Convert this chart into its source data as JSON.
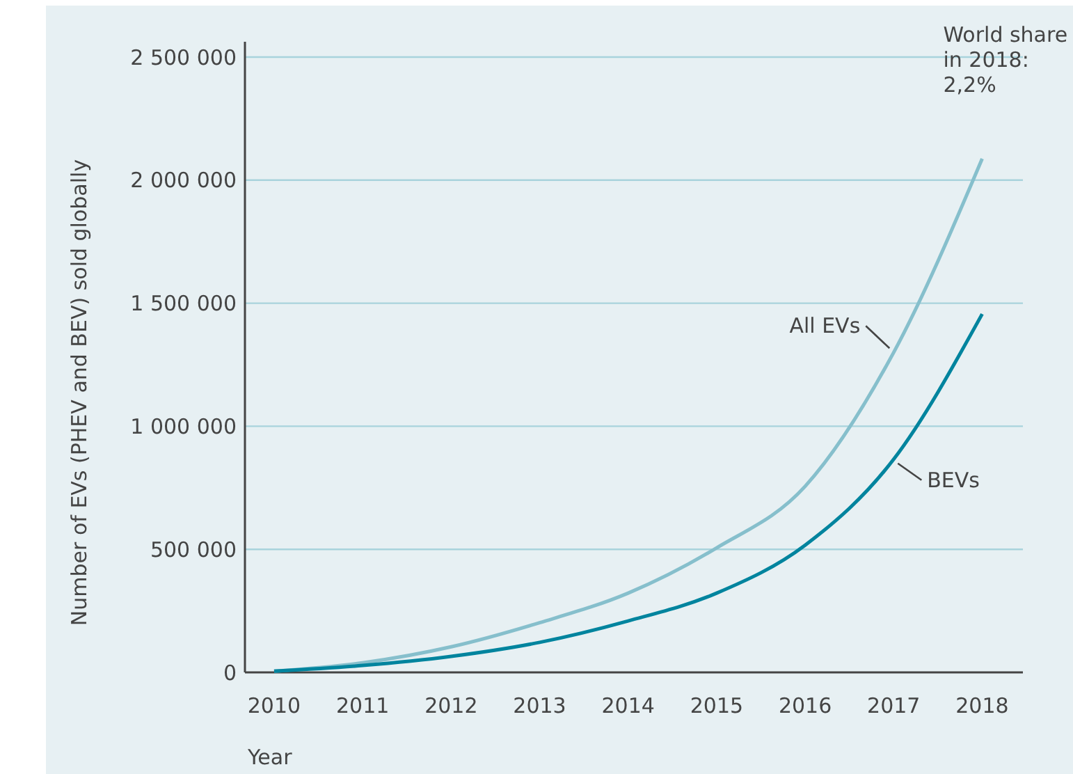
{
  "chart_data": {
    "type": "line",
    "xlabel": "Year",
    "ylabel": "Number of EVs (PHEV and BEV) sold globally",
    "x": [
      2010,
      2011,
      2012,
      2013,
      2014,
      2015,
      2016,
      2017,
      2018
    ],
    "series": [
      {
        "name": "All EVs",
        "color": "#86bfcc",
        "values": [
          5000,
          39000,
          104000,
          202000,
          322000,
          506000,
          756000,
          1300000,
          2087000
        ]
      },
      {
        "name": "BEVs",
        "color": "#00849e",
        "values": [
          5000,
          28000,
          65000,
          122000,
          209000,
          322000,
          517000,
          866000,
          1456000
        ]
      }
    ],
    "xlim": [
      2009.67,
      2018.46
    ],
    "xticks": [
      2010,
      2011,
      2012,
      2013,
      2014,
      2015,
      2016,
      2017,
      2018
    ],
    "ylim": [
      0,
      2500000
    ],
    "yticks": [
      0,
      {
        "value": 500000,
        "label": "500 000"
      },
      {
        "value": 1000000,
        "label": "1 000 000"
      },
      {
        "value": 1500000,
        "label": "1 500 000"
      },
      {
        "value": 2000000,
        "label": "2 000 000"
      },
      {
        "value": 2500000,
        "label": "2 500 000"
      }
    ],
    "grid": "y",
    "marker": "none",
    "line_style": "solid",
    "annotations": [
      {
        "text": "World share in 2018: 2,2%",
        "x": 2018,
        "y": 2087000
      }
    ]
  }
}
